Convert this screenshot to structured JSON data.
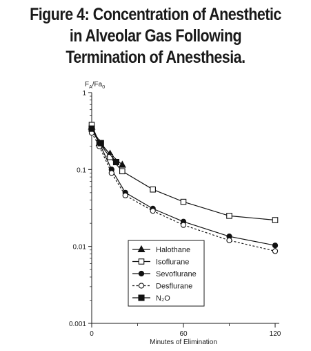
{
  "chart_data": {
    "type": "line",
    "title_lines": [
      "Figure 4: Concentration of Anesthetic",
      "in Alveolar Gas Following",
      "Termination of Anesthesia."
    ],
    "xlabel": "Minutes of Elimination",
    "ylabel": "F_A/Fa_0",
    "xlim": [
      0,
      120
    ],
    "ylim": [
      0.001,
      1
    ],
    "yscale": "log",
    "x_ticks": [
      0,
      60,
      120
    ],
    "y_ticks": [
      {
        "value": 1,
        "label": "1"
      },
      {
        "value": 0.1,
        "label": "0.1"
      },
      {
        "value": 0.01,
        "label": "0.01"
      },
      {
        "value": 0.001,
        "label": "0.001"
      }
    ],
    "grid": false,
    "legend_position": "center",
    "series": [
      {
        "name": "Halothane",
        "marker": "triangle-filled",
        "dashed": false,
        "color": "#111111",
        "x": [
          0,
          5,
          12,
          20
        ],
        "y": [
          0.36,
          0.22,
          0.16,
          0.115
        ]
      },
      {
        "name": "Isoflurane",
        "marker": "square-open",
        "dashed": false,
        "color": "#111111",
        "x": [
          0,
          5,
          12,
          20,
          40,
          60,
          90,
          120
        ],
        "y": [
          0.38,
          0.22,
          0.145,
          0.095,
          0.055,
          0.038,
          0.025,
          0.022
        ]
      },
      {
        "name": "Sevoflurane",
        "marker": "circle-filled",
        "dashed": false,
        "color": "#111111",
        "x": [
          0,
          5,
          13,
          22,
          40,
          60,
          90,
          120
        ],
        "y": [
          0.33,
          0.22,
          0.1,
          0.05,
          0.031,
          0.021,
          0.0135,
          0.0103
        ]
      },
      {
        "name": "Desflurane",
        "marker": "circle-open",
        "dashed": true,
        "color": "#111111",
        "x": [
          0,
          5,
          13,
          22,
          40,
          60,
          90,
          120
        ],
        "y": [
          0.3,
          0.2,
          0.09,
          0.046,
          0.029,
          0.019,
          0.012,
          0.0087
        ]
      },
      {
        "name": "N2O",
        "legend_label": "N₂O",
        "marker": "square-filled",
        "dashed": false,
        "color": "#111111",
        "x": [
          0,
          6,
          16
        ],
        "y": [
          0.34,
          0.22,
          0.125
        ]
      }
    ]
  }
}
